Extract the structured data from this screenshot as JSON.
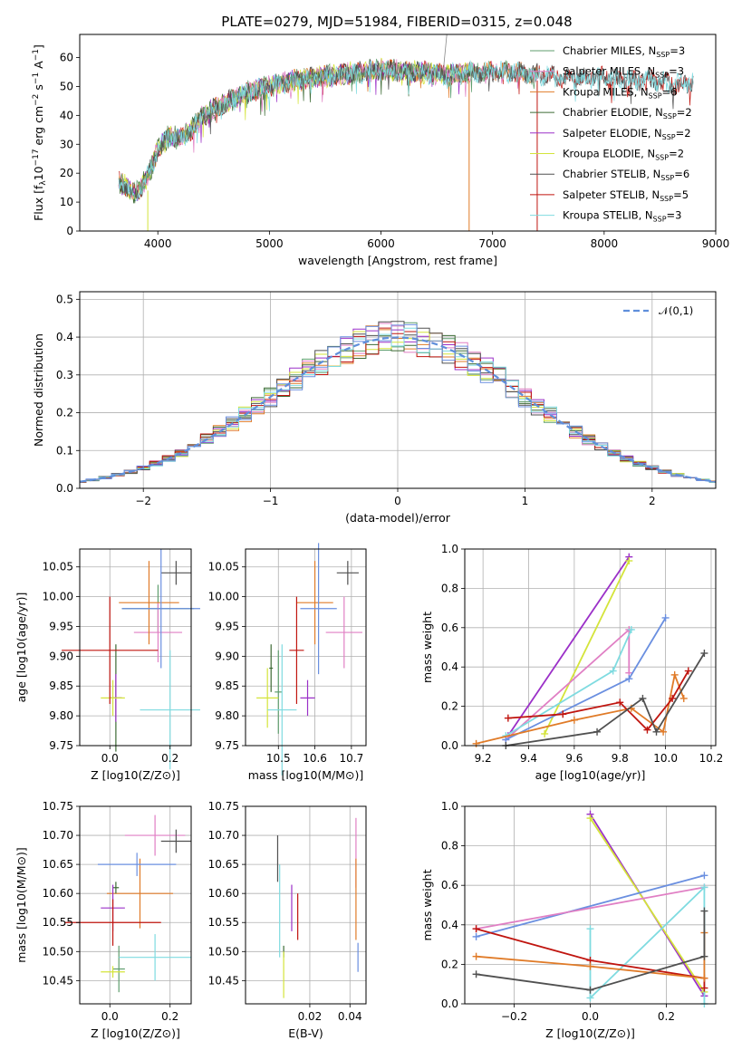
{
  "title": "PLATE=0279, MJD=51984, FIBERID=0315, z=0.048",
  "colors": {
    "Chabrier MILES": "#5f9e6e",
    "Salpeter MILES": "#e07fc4",
    "Kroupa MILES": "#e07b28",
    "Chabrier ELODIE": "#3d6b35",
    "Salpeter ELODIE": "#9b30c8",
    "Kroupa ELODIE": "#d4e43a",
    "Chabrier STELIB": "#505050",
    "Salpeter STELIB": "#c0150f",
    "Kroupa STELIB": "#7fdbe0",
    "gauss": "#5f8fdb",
    "Chabrier STELIB extra": "#6a8fe0"
  },
  "chart_data": [
    {
      "type": "line",
      "panel": "spectrum",
      "xlabel": "wavelength [Angstrom, rest frame]",
      "ylabel": "Flux [f_λ10^-17 erg cm^-2 s^-1 A^-1]",
      "xlim": [
        3300,
        9000
      ],
      "ylim": [
        0,
        68
      ],
      "xticks": [
        "4000",
        "5000",
        "6000",
        "7000",
        "8000",
        "9000"
      ],
      "yticks": [
        "0",
        "10",
        "20",
        "30",
        "40",
        "50",
        "60"
      ],
      "legend_position": "right",
      "series": [
        {
          "name": "Chabrier MILES",
          "nssp": "N_SSP=3"
        },
        {
          "name": "Salpeter MILES",
          "nssp": "N_SSP=3"
        },
        {
          "name": "Kroupa MILES",
          "nssp": "N_SSP=6"
        },
        {
          "name": "Chabrier ELODIE",
          "nssp": "N_SSP=2"
        },
        {
          "name": "Salpeter ELODIE",
          "nssp": "N_SSP=2"
        },
        {
          "name": "Kroupa ELODIE",
          "nssp": "N_SSP=2"
        },
        {
          "name": "Chabrier STELIB",
          "nssp": "N_SSP=6"
        },
        {
          "name": "Salpeter STELIB",
          "nssp": "N_SSP=5"
        },
        {
          "name": "Kroupa STELIB",
          "nssp": "N_SSP=3"
        }
      ],
      "continuum": {
        "x": [
          3650,
          3800,
          3900,
          4000,
          4100,
          4200,
          4300,
          4400,
          4600,
          4800,
          5000,
          5200,
          5400,
          5600,
          5800,
          6000,
          6200,
          6400,
          6600,
          6800,
          7000,
          7200,
          7400,
          7600,
          7800,
          8000,
          8200,
          8400,
          8600,
          8800
        ],
        "y": [
          17,
          13,
          18,
          28,
          33,
          32,
          35,
          40,
          44,
          48,
          50,
          52,
          53,
          54,
          55,
          56,
          55,
          55,
          54,
          55,
          55,
          55,
          54,
          53,
          53,
          53,
          52,
          52,
          51,
          51
        ]
      }
    },
    {
      "type": "histogram",
      "panel": "residuals",
      "xlabel": "(data-model)/error",
      "ylabel": "Normed distribution",
      "xlim": [
        -2.5,
        2.5
      ],
      "ylim": [
        0,
        0.52
      ],
      "xticks": [
        "−2",
        "−1",
        "0",
        "1",
        "2"
      ],
      "yticks": [
        "0.0",
        "0.1",
        "0.2",
        "0.3",
        "0.4",
        "0.5"
      ],
      "legend": "𝒩(0,1)",
      "bin_width": 0.1,
      "model": "N(0,1) gaussian overlay"
    },
    {
      "type": "scatter",
      "panel": "age-vs-Z",
      "xlabel": "Z [log10(Z/Z⊙)]",
      "ylabel": "age  [log10(age/yr)]",
      "xlim": [
        -0.1,
        0.27
      ],
      "ylim": [
        9.75,
        10.08
      ],
      "xticks": [
        "0.0",
        "0.2"
      ],
      "yticks": [
        "9.75",
        "9.80",
        "9.85",
        "9.90",
        "9.95",
        "10.00",
        "10.05"
      ],
      "points": [
        {
          "model": "Chabrier MILES",
          "x": 0.16,
          "y": 9.98,
          "xerr": 0.12,
          "yerr": 0.04
        },
        {
          "model": "Salpeter MILES",
          "x": 0.16,
          "y": 9.94,
          "xerr": 0.08,
          "yerr": 0.05
        },
        {
          "model": "Kroupa MILES",
          "x": 0.13,
          "y": 9.99,
          "xerr": 0.1,
          "yerr": 0.07
        },
        {
          "model": "Chabrier ELODIE",
          "x": 0.02,
          "y": 9.83,
          "xerr": 0.02,
          "yerr": 0.09
        },
        {
          "model": "Salpeter ELODIE",
          "x": 0.02,
          "y": 9.83,
          "xerr": 0.02,
          "yerr": 0.04
        },
        {
          "model": "Kroupa ELODIE",
          "x": 0.01,
          "y": 9.83,
          "xerr": 0.04,
          "yerr": 0.03
        },
        {
          "model": "Chabrier STELIB",
          "x": 0.22,
          "y": 10.04,
          "xerr": 0.05,
          "yerr": 0.02
        },
        {
          "model": "Salpeter STELIB",
          "x": 0.0,
          "y": 9.91,
          "xerr": 0.16,
          "yerr": 0.09
        },
        {
          "model": "Kroupa STELIB",
          "x": 0.2,
          "y": 9.81,
          "xerr": 0.1,
          "yerr": 0.1
        },
        {
          "model": "Chabrier STELIB extra",
          "x": 0.17,
          "y": 9.98,
          "xerr": 0.13,
          "yerr": 0.1
        }
      ]
    },
    {
      "type": "scatter",
      "panel": "age-vs-mass",
      "xlabel": "mass [log10(M/M⊙)]",
      "xlim": [
        10.41,
        10.74
      ],
      "ylim": [
        9.75,
        10.08
      ],
      "xticks": [
        "10.5",
        "10.6",
        "10.7"
      ],
      "yticks": [
        "9.75",
        "9.80",
        "9.85",
        "9.90",
        "9.95",
        "10.00",
        "10.05"
      ],
      "points": [
        {
          "model": "Chabrier MILES",
          "x": 10.5,
          "y": 9.84,
          "xerr": 0.01,
          "yerr": 0.07
        },
        {
          "model": "Salpeter MILES",
          "x": 10.68,
          "y": 9.94,
          "xerr": 0.05,
          "yerr": 0.06
        },
        {
          "model": "Kroupa MILES",
          "x": 10.6,
          "y": 9.99,
          "xerr": 0.05,
          "yerr": 0.07
        },
        {
          "model": "Chabrier ELODIE",
          "x": 10.48,
          "y": 9.88,
          "xerr": 0.005,
          "yerr": 0.04
        },
        {
          "model": "Salpeter ELODIE",
          "x": 10.58,
          "y": 9.83,
          "xerr": 0.02,
          "yerr": 0.03
        },
        {
          "model": "Kroupa ELODIE",
          "x": 10.47,
          "y": 9.83,
          "xerr": 0.03,
          "yerr": 0.05
        },
        {
          "model": "Chabrier STELIB",
          "x": 10.69,
          "y": 10.04,
          "xerr": 0.03,
          "yerr": 0.02
        },
        {
          "model": "Salpeter STELIB",
          "x": 10.55,
          "y": 9.91,
          "xerr": 0.02,
          "yerr": 0.09
        },
        {
          "model": "Kroupa STELIB",
          "x": 10.51,
          "y": 9.81,
          "xerr": 0.04,
          "yerr": 0.11
        },
        {
          "model": "Chabrier STELIB extra",
          "x": 10.61,
          "y": 9.98,
          "xerr": 0.05,
          "yerr": 0.11
        }
      ]
    },
    {
      "type": "line",
      "panel": "mass-weight-vs-age",
      "xlabel": "age  [log10(age/yr)]",
      "ylabel": "mass weight",
      "xlim": [
        9.12,
        10.22
      ],
      "ylim": [
        0,
        1
      ],
      "xticks": [
        "9.2",
        "9.4",
        "9.6",
        "9.8",
        "10.0",
        "10.2"
      ],
      "yticks": [
        "0.0",
        "0.2",
        "0.4",
        "0.6",
        "0.8",
        "1.0"
      ],
      "series": [
        {
          "model": "Salpeter ELODIE",
          "x": [
            9.31,
            9.84
          ],
          "y": [
            0.05,
            0.96
          ]
        },
        {
          "model": "Kroupa ELODIE",
          "x": [
            9.47,
            9.84
          ],
          "y": [
            0.06,
            0.94
          ]
        },
        {
          "model": "Salpeter MILES",
          "x": [
            9.3,
            9.84,
            9.84
          ],
          "y": [
            0.03,
            0.59,
            0.37
          ]
        },
        {
          "model": "Kroupa STELIB",
          "x": [
            9.3,
            9.77,
            9.85
          ],
          "y": [
            0.05,
            0.38,
            0.59
          ]
        },
        {
          "model": "Chabrier STELIB extra",
          "x": [
            9.3,
            9.84,
            10.0
          ],
          "y": [
            0.03,
            0.34,
            0.65
          ]
        },
        {
          "model": "Kroupa MILES",
          "x": [
            9.17,
            9.6,
            9.85,
            9.99,
            10.04,
            10.08
          ],
          "y": [
            0.01,
            0.13,
            0.19,
            0.07,
            0.36,
            0.24
          ]
        },
        {
          "model": "Salpeter STELIB",
          "x": [
            9.31,
            9.55,
            9.8,
            9.92,
            10.03,
            10.1
          ],
          "y": [
            0.14,
            0.16,
            0.22,
            0.08,
            0.24,
            0.38
          ]
        },
        {
          "model": "Chabrier STELIB",
          "x": [
            9.3,
            9.7,
            9.9,
            9.96,
            10.17
          ],
          "y": [
            0.0,
            0.07,
            0.24,
            0.07,
            0.47
          ]
        }
      ]
    },
    {
      "type": "scatter",
      "panel": "mass-vs-Z",
      "xlabel": "Z [log10(Z/Z⊙)]",
      "ylabel": "mass [log10(M/M⊙)]",
      "xlim": [
        -0.1,
        0.27
      ],
      "ylim": [
        10.41,
        10.75
      ],
      "xticks": [
        "0.0",
        "0.2"
      ],
      "yticks": [
        "10.45",
        "10.50",
        "10.55",
        "10.60",
        "10.65",
        "10.70",
        "10.75"
      ],
      "points": [
        {
          "model": "Chabrier MILES",
          "x": 0.03,
          "y": 10.47,
          "xerr": 0.02,
          "yerr": 0.04
        },
        {
          "model": "Salpeter MILES",
          "x": 0.15,
          "y": 10.7,
          "xerr": 0.1,
          "yerr": 0.035
        },
        {
          "model": "Kroupa MILES",
          "x": 0.1,
          "y": 10.6,
          "xerr": 0.11,
          "yerr": 0.06
        },
        {
          "model": "Chabrier ELODIE",
          "x": 0.02,
          "y": 10.61,
          "xerr": 0.01,
          "yerr": 0.01
        },
        {
          "model": "Salpeter ELODIE",
          "x": 0.01,
          "y": 10.575,
          "xerr": 0.04,
          "yerr": 0.04
        },
        {
          "model": "Kroupa ELODIE",
          "x": 0.01,
          "y": 10.465,
          "xerr": 0.04,
          "yerr": 0.01
        },
        {
          "model": "Chabrier STELIB",
          "x": 0.22,
          "y": 10.69,
          "xerr": 0.05,
          "yerr": 0.02
        },
        {
          "model": "Salpeter STELIB",
          "x": 0.01,
          "y": 10.55,
          "xerr": 0.16,
          "yerr": 0.04
        },
        {
          "model": "Kroupa STELIB",
          "x": 0.15,
          "y": 10.49,
          "xerr": 0.12,
          "yerr": 0.04
        },
        {
          "model": "Chabrier STELIB extra",
          "x": 0.09,
          "y": 10.65,
          "xerr": 0.13,
          "yerr": 0.02
        }
      ]
    },
    {
      "type": "scatter",
      "panel": "mass-vs-EBV",
      "xlabel": "E(B-V)",
      "xlim": [
        -0.012,
        0.048
      ],
      "ylim": [
        10.41,
        10.75
      ],
      "xticks": [
        "0.02",
        "0.04"
      ],
      "yticks": [
        "10.45",
        "10.50",
        "10.55",
        "10.60",
        "10.65",
        "10.70",
        "10.75"
      ],
      "points": [
        {
          "model": "Chabrier STELIB",
          "x": 0.004,
          "y": 10.66,
          "xerr": 0,
          "yerr": 0.04
        },
        {
          "model": "Kroupa STELIB",
          "x": 0.005,
          "y": 10.57,
          "xerr": 0,
          "yerr": 0.08
        },
        {
          "model": "Chabrier ELODIE",
          "x": 0.007,
          "y": 10.5,
          "xerr": 0,
          "yerr": 0.01
        },
        {
          "model": "Kroupa ELODIE",
          "x": 0.007,
          "y": 10.46,
          "xerr": 0,
          "yerr": 0.04
        },
        {
          "model": "Salpeter ELODIE",
          "x": 0.011,
          "y": 10.575,
          "xerr": 0,
          "yerr": 0.04
        },
        {
          "model": "Salpeter STELIB",
          "x": 0.014,
          "y": 10.56,
          "xerr": 0,
          "yerr": 0.04
        },
        {
          "model": "Salpeter MILES",
          "x": 0.043,
          "y": 10.67,
          "xerr": 0,
          "yerr": 0.06
        },
        {
          "model": "Kroupa MILES",
          "x": 0.043,
          "y": 10.59,
          "xerr": 0,
          "yerr": 0.07
        },
        {
          "model": "Chabrier STELIB extra",
          "x": 0.044,
          "y": 10.49,
          "xerr": 0,
          "yerr": 0.025
        }
      ]
    },
    {
      "type": "line",
      "panel": "mass-weight-vs-Z",
      "xlabel": "Z [log10(Z/Z⊙)]",
      "ylabel": "mass weight",
      "xlim": [
        -0.33,
        0.33
      ],
      "ylim": [
        0,
        1
      ],
      "xticks": [
        "−0.2",
        "0.0",
        "0.2"
      ],
      "yticks": [
        "0.0",
        "0.2",
        "0.4",
        "0.6",
        "0.8",
        "1.0"
      ],
      "series": [
        {
          "model": "Salpeter ELODIE",
          "x": [
            0.0,
            0.3
          ],
          "y": [
            0.96,
            0.04
          ]
        },
        {
          "model": "Kroupa ELODIE",
          "x": [
            0.0,
            0.3
          ],
          "y": [
            0.94,
            0.06
          ]
        },
        {
          "model": "Chabrier STELIB extra",
          "x": [
            -0.3,
            0.3
          ],
          "y": [
            0.34,
            0.65
          ]
        },
        {
          "model": "Salpeter MILES",
          "x": [
            -0.3,
            0.3
          ],
          "y": [
            0.38,
            0.59
          ]
        },
        {
          "model": "Kroupa STELIB",
          "x": [
            0.0,
            0.0,
            0.3,
            0.3
          ],
          "y": [
            0.38,
            0.03,
            0.59,
            0.0
          ]
        },
        {
          "model": "Salpeter STELIB",
          "x": [
            -0.3,
            0.0,
            0.3,
            0.3
          ],
          "y": [
            0.38,
            0.22,
            0.13,
            0.08
          ]
        },
        {
          "model": "Kroupa MILES",
          "x": [
            -0.3,
            0.0,
            0.3,
            0.3
          ],
          "y": [
            0.24,
            0.19,
            0.13,
            0.36
          ]
        },
        {
          "model": "Chabrier STELIB",
          "x": [
            -0.3,
            0.0,
            0.3,
            0.3
          ],
          "y": [
            0.15,
            0.07,
            0.24,
            0.47
          ]
        }
      ]
    }
  ]
}
